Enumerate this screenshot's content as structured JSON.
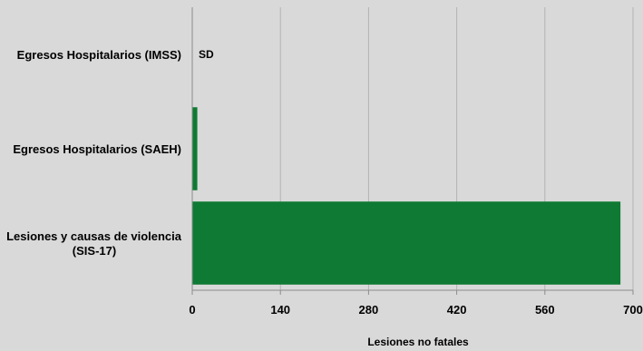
{
  "chart_data": {
    "type": "bar",
    "orientation": "horizontal",
    "categories": [
      "Egresos Hospitalarios (IMSS)",
      "Egresos Hospitalarios (SAEH)",
      [
        "Lesiones y causas de violencia",
        "(SIS-17)"
      ]
    ],
    "values": [
      0,
      8,
      680
    ],
    "data_labels": [
      "SD",
      "",
      ""
    ],
    "xlabel": "Lesiones no fatales",
    "ylabel": "",
    "title": "",
    "xlim": [
      0,
      700
    ],
    "xticks": [
      0,
      140,
      280,
      420,
      560,
      700
    ],
    "grid": "vertical",
    "legend": "none",
    "bar_color": "#0e7a33",
    "grid_color": "#b3b3b3",
    "axis_color": "#8c8c8c"
  }
}
